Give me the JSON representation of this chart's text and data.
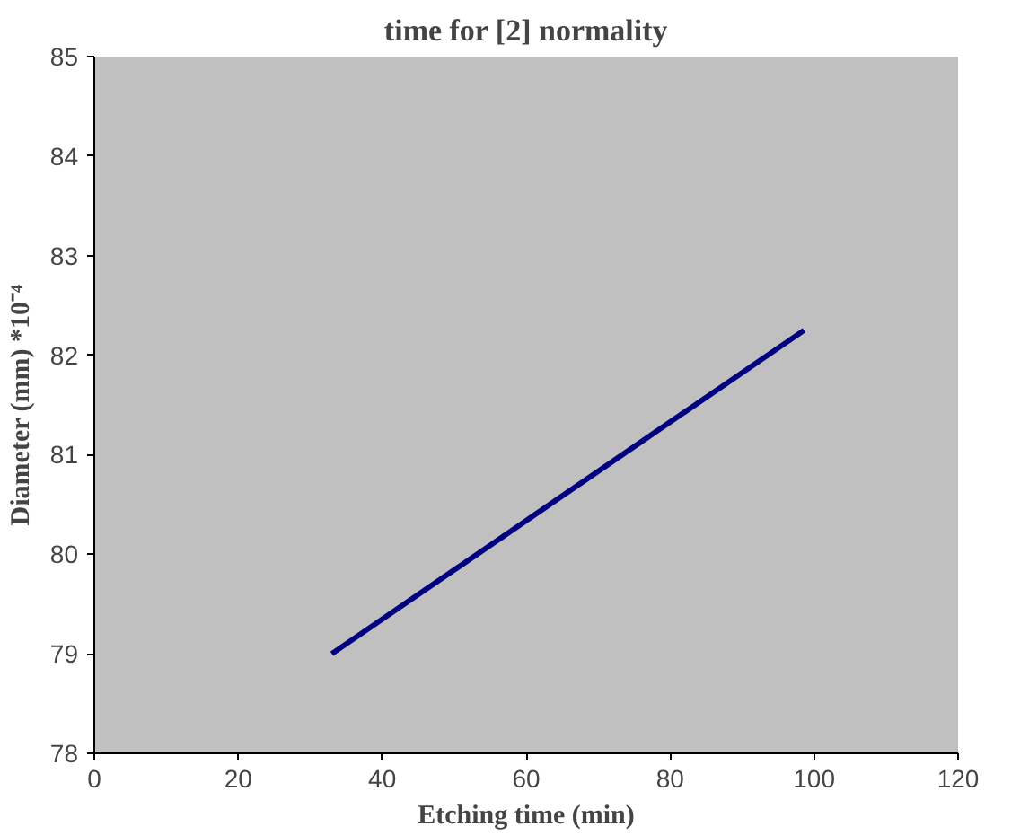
{
  "chart_data": {
    "type": "line",
    "title": "time for [2] normality",
    "xlabel": "Etching time (min)",
    "ylabel": "Diameter (mm) *10⁻⁴",
    "x": [
      33,
      98.6
    ],
    "series": [
      {
        "color": "#000080",
        "values": [
          79.0,
          82.25
        ]
      }
    ],
    "xlim": [
      0,
      120
    ],
    "ylim": [
      78,
      85
    ],
    "xticks": [
      0,
      20,
      40,
      60,
      80,
      100,
      120
    ],
    "yticks": [
      78,
      79,
      80,
      81,
      82,
      83,
      84,
      85
    ],
    "marker": "none",
    "line_style": "solid"
  }
}
